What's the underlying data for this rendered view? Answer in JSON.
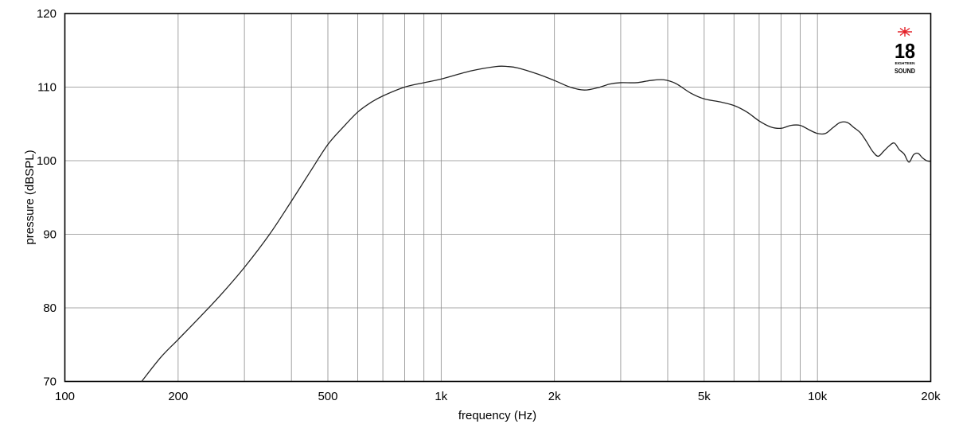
{
  "chart_data": {
    "type": "line",
    "xlabel": "frequency (Hz)",
    "ylabel": "pressure (dBSPL)",
    "x_scale": "log",
    "xlim": [
      100,
      20000
    ],
    "ylim": [
      70,
      120
    ],
    "grid": true,
    "x_ticks": [
      100,
      200,
      500,
      1000,
      2000,
      5000,
      10000,
      20000
    ],
    "x_tick_labels": [
      "100",
      "200",
      "500",
      "1k",
      "2k",
      "5k",
      "10k",
      "20k"
    ],
    "y_ticks": [
      70,
      80,
      90,
      100,
      110,
      120
    ],
    "y_tick_labels": [
      "70",
      "80",
      "90",
      "100",
      "110",
      "120"
    ],
    "series": [
      {
        "x": [
          160,
          180,
          200,
          230,
          260,
          300,
          350,
          400,
          450,
          500,
          550,
          600,
          650,
          700,
          800,
          900,
          1000,
          1200,
          1400,
          1500,
          1600,
          1800,
          2000,
          2200,
          2400,
          2600,
          2800,
          3000,
          3300,
          3600,
          3900,
          4200,
          4600,
          5000,
          5500,
          6000,
          6500,
          7000,
          7500,
          8000,
          8500,
          9000,
          9500,
          10000,
          10500,
          11000,
          11500,
          12000,
          12500,
          13000,
          13500,
          14000,
          14500,
          15000,
          15500,
          16000,
          16500,
          17000,
          17500,
          18000,
          18500,
          19000,
          19500,
          20000
        ],
        "y": [
          70.0,
          73.3,
          75.7,
          78.9,
          81.8,
          85.5,
          90.0,
          94.5,
          98.6,
          102.2,
          104.6,
          106.6,
          107.9,
          108.8,
          110.0,
          110.6,
          111.1,
          112.2,
          112.8,
          112.8,
          112.6,
          111.8,
          110.9,
          110.0,
          109.6,
          109.9,
          110.4,
          110.6,
          110.6,
          110.9,
          111.0,
          110.5,
          109.2,
          108.4,
          108.0,
          107.5,
          106.6,
          105.4,
          104.6,
          104.4,
          104.8,
          104.8,
          104.2,
          103.7,
          103.7,
          104.5,
          105.2,
          105.2,
          104.5,
          103.8,
          102.6,
          101.3,
          100.6,
          101.3,
          102.0,
          102.4,
          101.5,
          100.9,
          99.8,
          100.8,
          101.0,
          100.4,
          100.0,
          99.9
        ]
      }
    ]
  },
  "logo": {
    "number": "18",
    "small_text": "EIGHTEEN",
    "word": "SOUND",
    "star_color": "#e4232a"
  }
}
